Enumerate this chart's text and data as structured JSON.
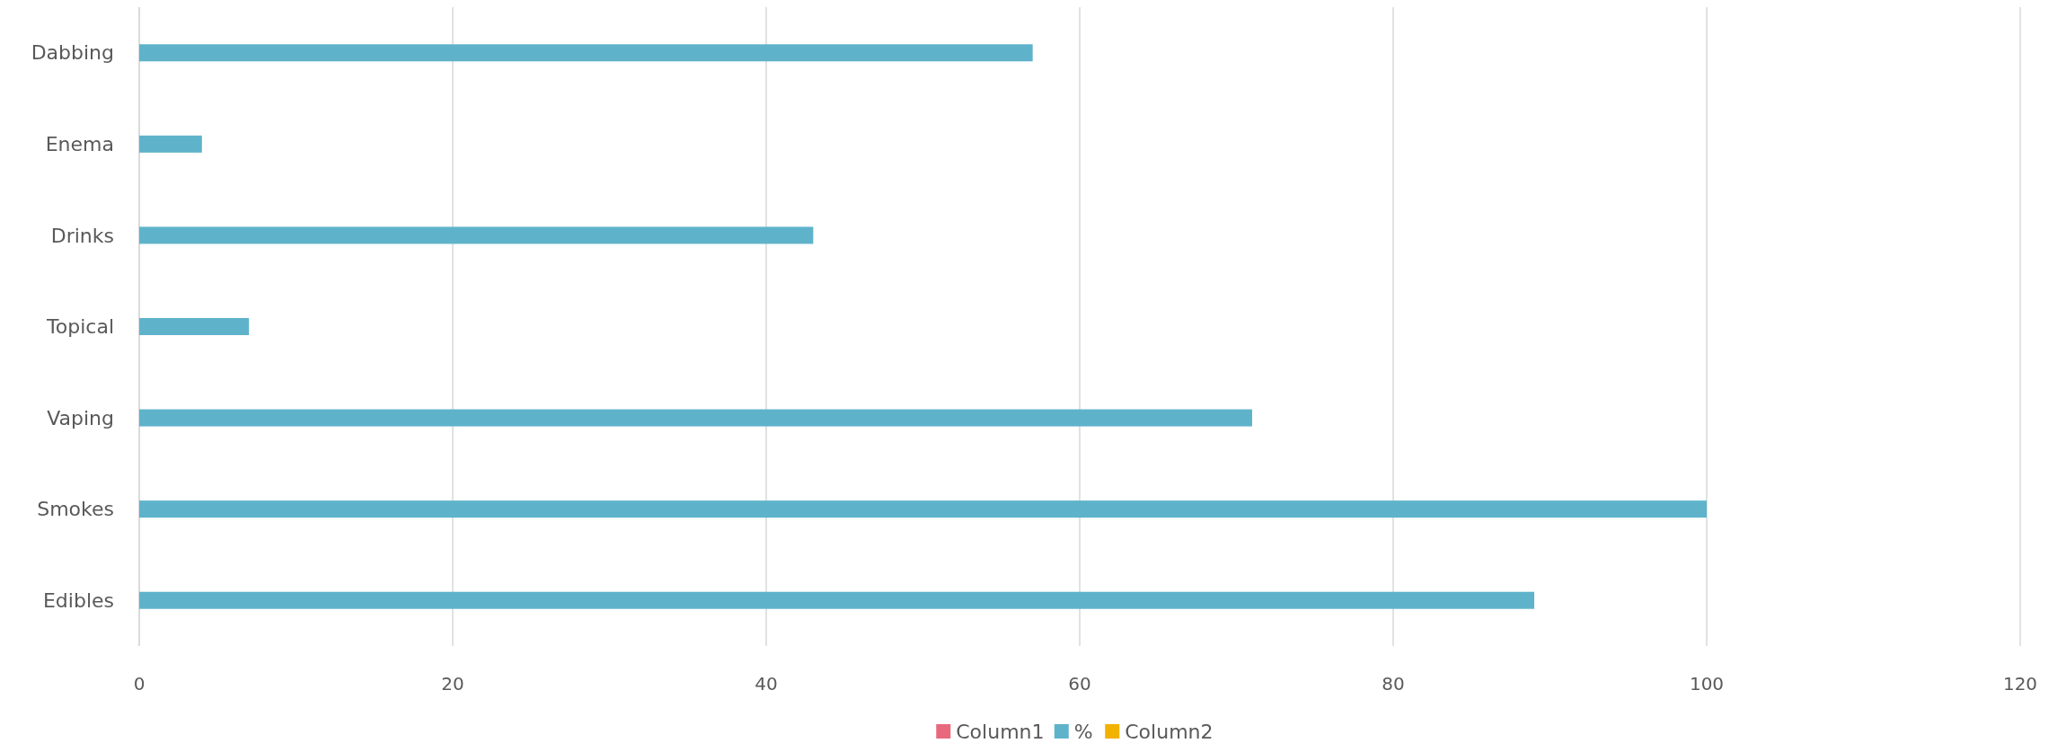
{
  "chart_data": {
    "type": "bar",
    "orientation": "horizontal",
    "categories": [
      "Dabbing",
      "Enema",
      "Drinks",
      "Topical",
      "Vaping",
      "Smokes",
      "Edibles"
    ],
    "series": [
      {
        "name": "Column1",
        "color": "#e8697d",
        "values": [
          null,
          null,
          null,
          null,
          null,
          null,
          null
        ]
      },
      {
        "name": "%",
        "color": "#5eb3cb",
        "values": [
          57,
          4,
          43,
          7,
          71,
          100,
          89
        ]
      },
      {
        "name": "Column2",
        "color": "#f2b200",
        "values": [
          null,
          null,
          null,
          null,
          null,
          null,
          null
        ]
      }
    ],
    "xlim": [
      0,
      120
    ],
    "xticks": [
      0,
      20,
      40,
      60,
      80,
      100,
      120
    ],
    "grid": "x",
    "legend": "bottom"
  }
}
